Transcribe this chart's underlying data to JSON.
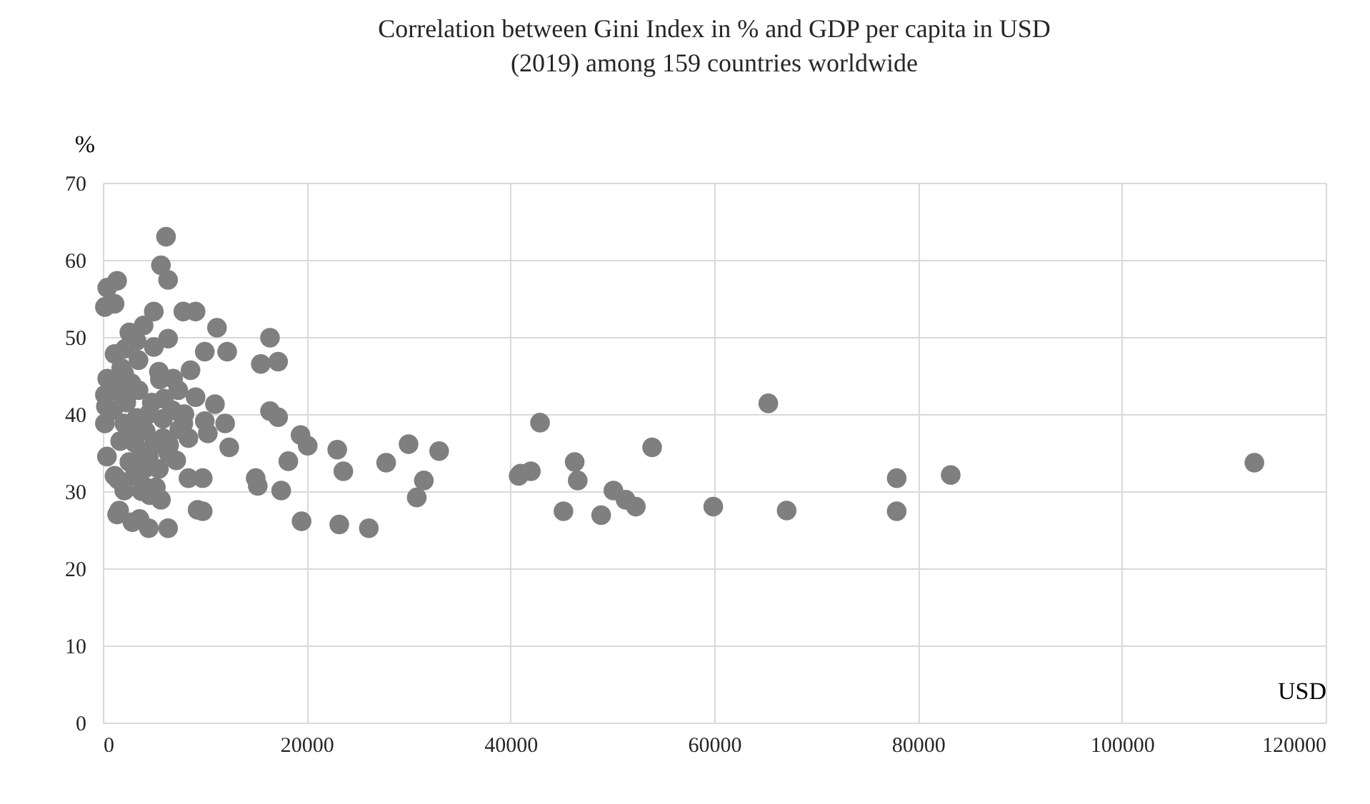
{
  "chart_data": {
    "type": "scatter",
    "title": "Correlation between Gini Index in % and GDP per capita in USD (2019) among 159 countries worldwide",
    "xlabel": "USD",
    "ylabel": "%",
    "xlim": [
      0,
      120000
    ],
    "ylim": [
      0,
      70
    ],
    "xticks": [
      0,
      20000,
      40000,
      60000,
      80000,
      100000,
      120000
    ],
    "yticks": [
      0,
      10,
      20,
      30,
      40,
      50,
      60,
      70
    ],
    "grid": true,
    "marker": "circle",
    "series": [
      {
        "color": "#7f7f7f",
        "x": [
          113000,
          83200,
          77900,
          77900,
          67100,
          65300,
          59900,
          53900,
          52300,
          51300,
          50100,
          48900,
          46600,
          46300,
          45200,
          42900,
          42000,
          41000,
          40800,
          33000,
          31500,
          30800,
          30000,
          27800,
          26100,
          23600,
          23200,
          23000,
          20100,
          19400,
          19500,
          18200,
          17500,
          17200,
          17200,
          16400,
          16400,
          15500,
          15200,
          15000,
          12400,
          12200,
          12000,
          11200,
          11000,
          10300,
          10000,
          10000,
          9800,
          9800,
          9300,
          9100,
          9100,
          8600,
          8400,
          8400,
          7900,
          7900,
          7400,
          6900,
          6400,
          6400,
          6400,
          6400,
          6200,
          5900,
          5900,
          5700,
          5700,
          5500,
          5500,
          5000,
          5000,
          4500,
          4500,
          4500,
          4000,
          4000,
          3600,
          3500,
          3100,
          3100,
          2600,
          2600,
          2100,
          2100,
          2100,
          1900,
          1400,
          1400,
          1150,
          1150,
          1150,
          430,
          430,
          200,
          200,
          200,
          300,
          1000,
          1700,
          2300,
          2800,
          3300,
          3800,
          4200,
          4800,
          5200,
          1500,
          1800,
          3500,
          4200,
          6800,
          7500,
          8000,
          2200,
          1000,
          3800,
          2700,
          6000,
          7200,
          400,
          5600,
          4600,
          2900,
          1600,
          3300,
          6500,
          5000
        ],
        "values": [
          33.7,
          32.1,
          31.7,
          27.4,
          27.5,
          41.4,
          28,
          35.7,
          28,
          28.9,
          30.1,
          26.9,
          31.4,
          33.8,
          27.4,
          38.9,
          32.6,
          32.3,
          32,
          35.2,
          31.4,
          29.2,
          36.1,
          33.7,
          25.2,
          32.6,
          25.7,
          35.4,
          35.9,
          37.3,
          26.1,
          33.9,
          30.1,
          46.8,
          39.6,
          49.9,
          40.4,
          46.5,
          30.7,
          31.7,
          35.7,
          48.1,
          38.8,
          51.2,
          41.3,
          37.5,
          48.1,
          39.1,
          31.7,
          27.4,
          27.6,
          53.3,
          42.2,
          45.7,
          36.9,
          31.7,
          53.3,
          38.8,
          43.1,
          44.6,
          57.4,
          49.8,
          35,
          25.2,
          63,
          39.4,
          36.9,
          59.3,
          28.9,
          45.5,
          32.9,
          53.3,
          48.7,
          40,
          34.4,
          25.2,
          51.5,
          30.7,
          26.4,
          43.1,
          36.3,
          32,
          50.6,
          33.8,
          45.2,
          38.8,
          30.1,
          42.5,
          57.3,
          27,
          54.3,
          47.8,
          32,
          56.4,
          44.6,
          53.9,
          42.5,
          38.8,
          41,
          40.5,
          36.5,
          41.5,
          44,
          39.5,
          35,
          37.8,
          41.5,
          30.5,
          31.5,
          46,
          47,
          33,
          40.5,
          38,
          40,
          48.5,
          44,
          30,
          37.5,
          42,
          34,
          34.5,
          44.5,
          29.5,
          26,
          27.5,
          49.5,
          36,
          36
        ]
      }
    ]
  }
}
